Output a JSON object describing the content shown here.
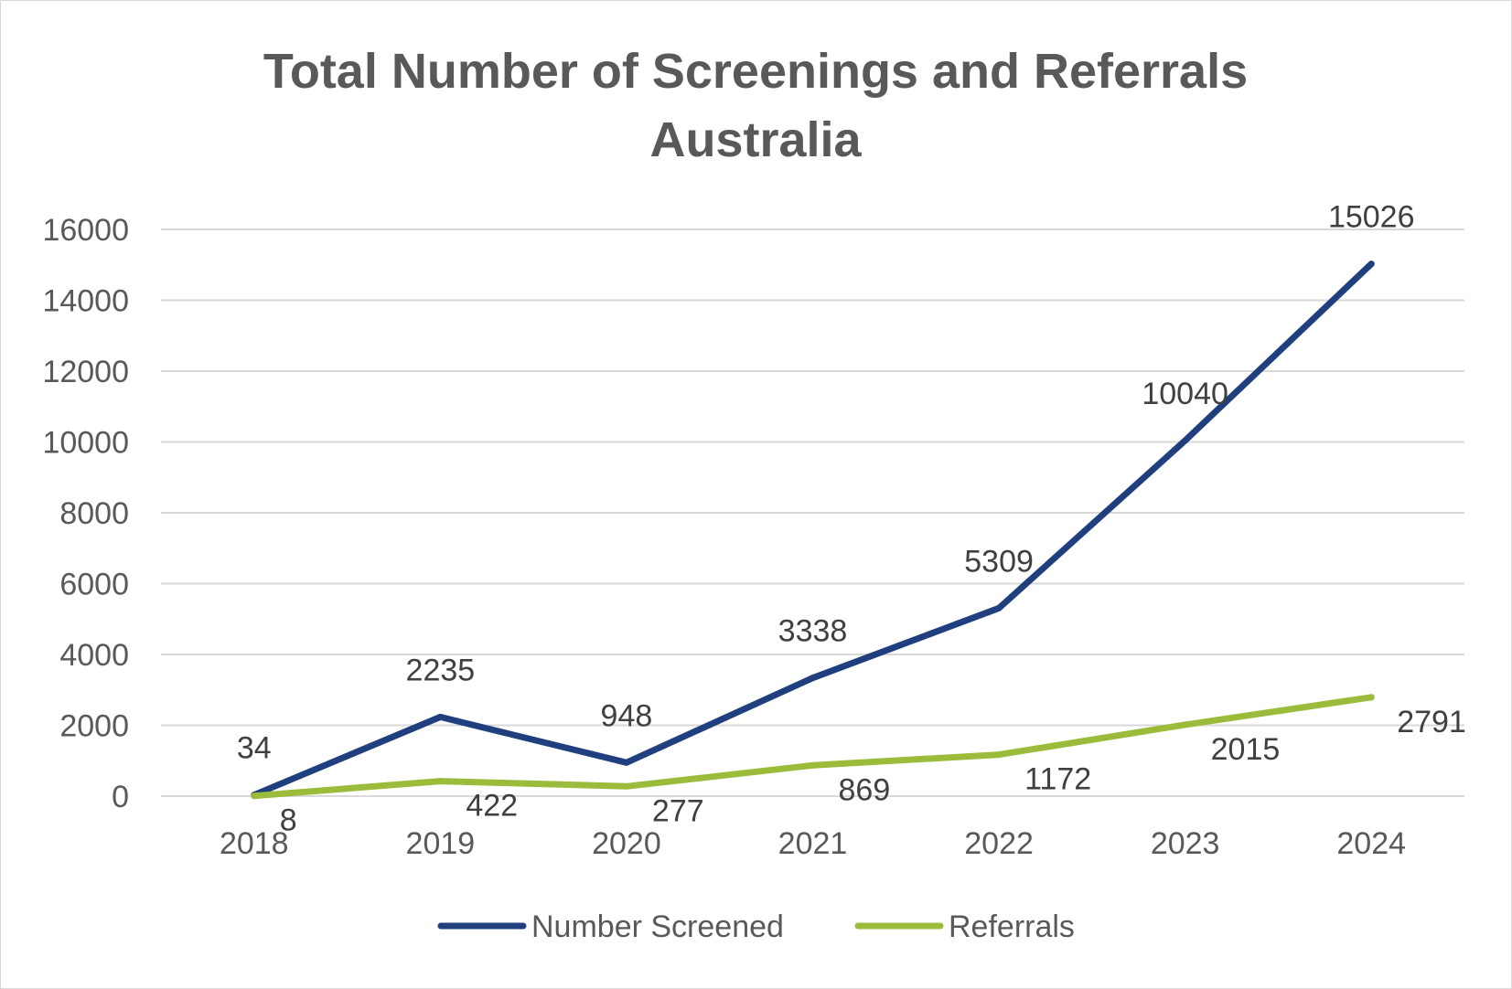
{
  "chart_data": {
    "type": "line",
    "title_lines": [
      "Total Number of Screenings and Referrals",
      "Australia"
    ],
    "categories": [
      "2018",
      "2019",
      "2020",
      "2021",
      "2022",
      "2023",
      "2024"
    ],
    "ylim": [
      0,
      16000
    ],
    "yticks": [
      0,
      2000,
      4000,
      6000,
      8000,
      10000,
      12000,
      14000,
      16000
    ],
    "ytick_labels": [
      "0",
      "2000",
      "4000",
      "6000",
      "8000",
      "10000",
      "12000",
      "14000",
      "16000"
    ],
    "grid": true,
    "legend_position": "bottom",
    "series": [
      {
        "name": "Number Screened",
        "color": "#1f3f7f",
        "label_position": "above",
        "values": [
          34,
          2235,
          948,
          3338,
          5309,
          10040,
          15026
        ],
        "labels": [
          "34",
          "2235",
          "948",
          "3338",
          "5309",
          "10040",
          "15026"
        ]
      },
      {
        "name": "Referrals",
        "color": "#9bbb3b",
        "label_position": "right",
        "values": [
          8,
          422,
          277,
          869,
          1172,
          2015,
          2791
        ],
        "labels": [
          "8",
          "422",
          "277",
          "869",
          "1172",
          "2015",
          "2791"
        ]
      }
    ]
  }
}
